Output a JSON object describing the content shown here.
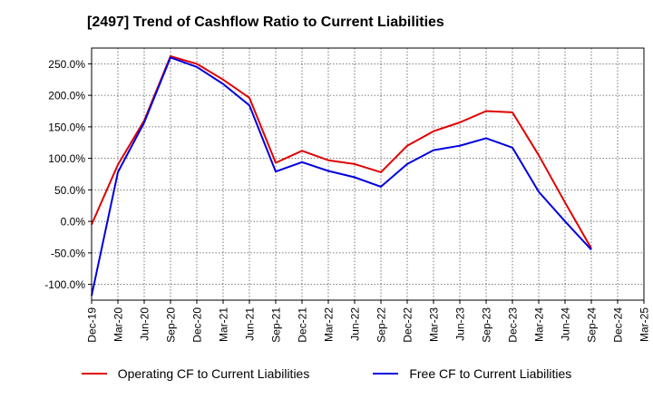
{
  "chart_data": {
    "type": "line",
    "title": "[2497]  Trend of Cashflow Ratio to Current Liabilities",
    "xlabel": "",
    "ylabel": "",
    "x": [
      "Dec-19",
      "Mar-20",
      "Jun-20",
      "Sep-20",
      "Dec-20",
      "Mar-21",
      "Jun-21",
      "Sep-21",
      "Dec-21",
      "Mar-22",
      "Jun-22",
      "Sep-22",
      "Dec-22",
      "Mar-23",
      "Jun-23",
      "Sep-23",
      "Dec-23",
      "Mar-24",
      "Jun-24",
      "Sep-24",
      "Dec-24",
      "Mar-25"
    ],
    "ylim": [
      -125,
      275
    ],
    "yticks": [
      -100,
      -50,
      0,
      50,
      100,
      150,
      200,
      250
    ],
    "ytick_labels": [
      "-100.0%",
      "-50.0%",
      "0.0%",
      "50.0%",
      "100.0%",
      "150.0%",
      "200.0%",
      "250.0%"
    ],
    "grid": true,
    "legend_position": "bottom",
    "series": [
      {
        "name": "Operating CF to Current Liabilities",
        "color": "#e00000",
        "values": [
          -5,
          90,
          160,
          262,
          250,
          225,
          196,
          93,
          112,
          97,
          91,
          78,
          120,
          143,
          157,
          175,
          173,
          105,
          30,
          -43,
          null,
          null
        ]
      },
      {
        "name": "Free CF to Current Liabilities",
        "color": "#0000e0",
        "values": [
          -118,
          78,
          157,
          260,
          245,
          218,
          184,
          79,
          94,
          80,
          70,
          55,
          91,
          113,
          120,
          132,
          117,
          47,
          0,
          -45,
          null,
          null
        ]
      }
    ]
  }
}
